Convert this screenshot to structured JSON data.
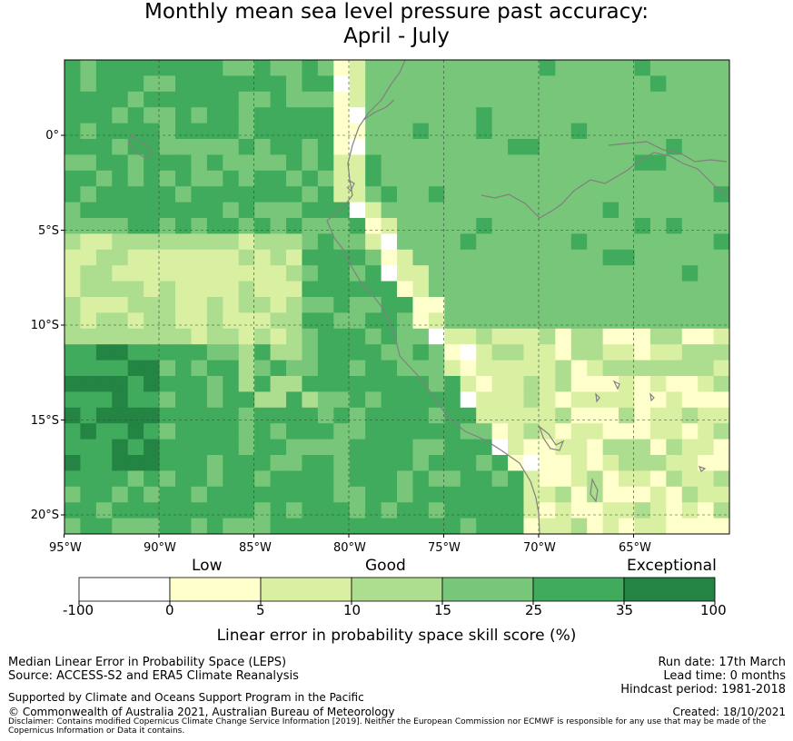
{
  "title_line1": "Monthly mean sea level pressure past accuracy:",
  "title_line2": "April - July",
  "lat_labels": [
    "0°",
    "5°S",
    "10°S",
    "15°S",
    "20°S"
  ],
  "lon_labels": [
    "95°W",
    "90°W",
    "85°W",
    "80°W",
    "75°W",
    "70°W",
    "65°W"
  ],
  "categories": {
    "low": "Low",
    "good": "Good",
    "exceptional": "Exceptional"
  },
  "colorbar": {
    "ticks": [
      "-100",
      "0",
      "5",
      "10",
      "15",
      "25",
      "35",
      "100"
    ],
    "colors": [
      "#ffffff",
      "#ffffcc",
      "#d9f0a3",
      "#addd8e",
      "#78c679",
      "#41ab5d",
      "#238443"
    ],
    "label": "Linear error in probability space skill score (%)"
  },
  "footer": {
    "left1": "Median Linear Error in Probability Space (LEPS)",
    "left2": "Source: ACCESS-S2 and ERA5 Climate Reanalysis",
    "support": "Supported by Climate and Oceans Support Program in the Pacific",
    "copyright": "© Commonwealth of Australia 2021, Australian Bureau of Meteorology",
    "disclaimer1": "Disclaimer: Contains modified Copernicus Climate Change Service Information [2019]. Neither the European Commission nor ECMWF is responsible for any use that may be made of the",
    "disclaimer2": "Copernicus Information or Data it contains.",
    "run_date": "Run date: 17th March",
    "lead_time": "Lead time: 0 months",
    "hindcast": "Hindcast period: 1981-2018",
    "created": "Created: 18/10/2021"
  }
}
